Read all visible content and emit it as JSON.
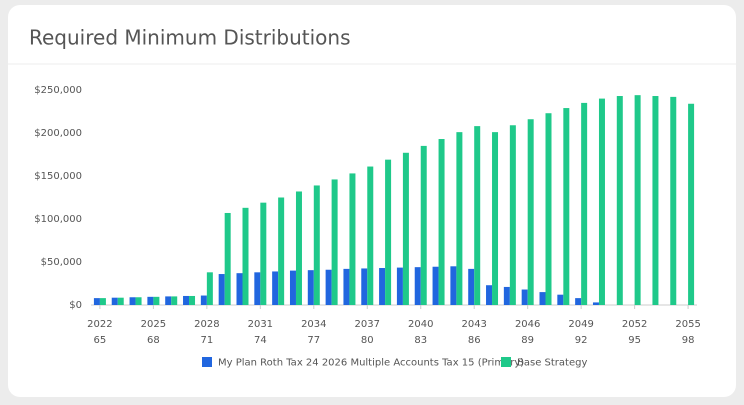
{
  "chart_data": {
    "type": "bar",
    "title": "Required Minimum Distributions",
    "categories": [
      "2022",
      null,
      null,
      "2025",
      null,
      null,
      "2028",
      null,
      null,
      "2031",
      null,
      null,
      "2034",
      null,
      null,
      "2037",
      null,
      null,
      "2040",
      null,
      null,
      "2043",
      null,
      null,
      "2046",
      null,
      null,
      "2049",
      null,
      null,
      "2052",
      null,
      null,
      "2055"
    ],
    "secondary_categories": [
      "65",
      null,
      null,
      "68",
      null,
      null,
      "71",
      null,
      null,
      "74",
      null,
      null,
      "77",
      null,
      null,
      "80",
      null,
      null,
      "83",
      null,
      null,
      "86",
      null,
      null,
      "89",
      null,
      null,
      "92",
      null,
      null,
      "95",
      null,
      null,
      "98"
    ],
    "series": [
      {
        "name": "My Plan Roth Tax 24 2026 Multiple Accounts Tax 15 (Primary)",
        "color": "#2166df",
        "values": [
          8000,
          8500,
          9000,
          9500,
          10000,
          10500,
          11000,
          36000,
          37000,
          38000,
          39000,
          40000,
          40500,
          41000,
          42000,
          42500,
          43000,
          43500,
          44000,
          44500,
          45000,
          42000,
          23000,
          21000,
          18000,
          15000,
          12000,
          8000,
          3000,
          0,
          0,
          0,
          0,
          0
        ]
      },
      {
        "name": "Base Strategy",
        "color": "#1fc98a",
        "values": [
          8000,
          8500,
          9000,
          9500,
          10000,
          10500,
          38000,
          107000,
          113000,
          119000,
          125000,
          132000,
          139000,
          146000,
          153000,
          161000,
          169000,
          177000,
          185000,
          193000,
          201000,
          208000,
          201000,
          209000,
          216000,
          223000,
          229000,
          235000,
          240000,
          243000,
          244000,
          243000,
          242000,
          234000
        ]
      }
    ],
    "ylim": [
      0,
      250000
    ],
    "yticks": [
      {
        "value": 0,
        "label": "$0"
      },
      {
        "value": 50000,
        "label": "$50,000"
      },
      {
        "value": 100000,
        "label": "$100,000"
      },
      {
        "value": 150000,
        "label": "$150,000"
      },
      {
        "value": 200000,
        "label": "$200,000"
      },
      {
        "value": 250000,
        "label": "$250,000"
      }
    ],
    "grid": false,
    "legend": "bottom"
  }
}
